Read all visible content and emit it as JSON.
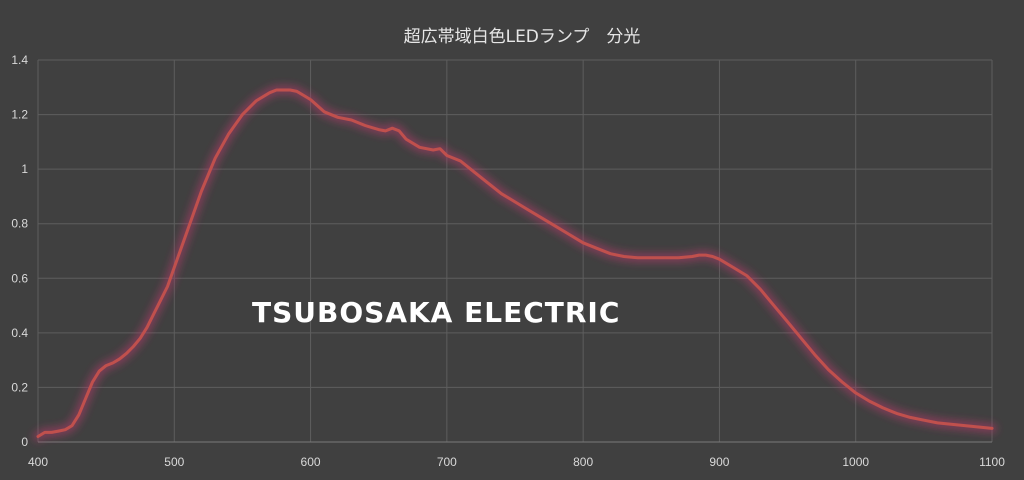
{
  "chart_data": {
    "type": "line",
    "title": "超広帯域白色LEDランプ　分光",
    "xlabel": "",
    "ylabel": "",
    "xlim": [
      400,
      1100
    ],
    "ylim": [
      0,
      1.4
    ],
    "xticks": [
      "400",
      "500",
      "600",
      "700",
      "800",
      "900",
      "1000",
      "1100"
    ],
    "yticks": [
      "0",
      "0.2",
      "0.4",
      "0.6",
      "0.8",
      "1",
      "1.2",
      "1.4"
    ],
    "grid": true,
    "legend": "none",
    "line_color": "#c0504d",
    "glow_color": "#b03a6a",
    "series": [
      {
        "x": [
          400,
          405,
          410,
          415,
          420,
          425,
          430,
          435,
          440,
          445,
          450,
          455,
          460,
          465,
          470,
          475,
          480,
          485,
          490,
          495,
          500,
          510,
          520,
          530,
          540,
          550,
          560,
          570,
          575,
          580,
          585,
          590,
          595,
          600,
          610,
          620,
          630,
          640,
          650,
          655,
          660,
          665,
          670,
          680,
          690,
          695,
          700,
          710,
          720,
          730,
          740,
          750,
          760,
          770,
          780,
          790,
          800,
          810,
          820,
          830,
          840,
          850,
          860,
          870,
          880,
          885,
          890,
          895,
          900,
          910,
          920,
          930,
          940,
          950,
          960,
          970,
          980,
          990,
          1000,
          1010,
          1020,
          1030,
          1040,
          1050,
          1060,
          1070,
          1080,
          1090,
          1100
        ],
        "values": [
          0.02,
          0.035,
          0.035,
          0.04,
          0.045,
          0.06,
          0.1,
          0.16,
          0.22,
          0.26,
          0.28,
          0.29,
          0.305,
          0.325,
          0.35,
          0.38,
          0.42,
          0.47,
          0.52,
          0.57,
          0.64,
          0.78,
          0.92,
          1.04,
          1.13,
          1.2,
          1.25,
          1.28,
          1.29,
          1.29,
          1.29,
          1.285,
          1.27,
          1.255,
          1.21,
          1.19,
          1.18,
          1.16,
          1.145,
          1.14,
          1.15,
          1.14,
          1.11,
          1.08,
          1.07,
          1.075,
          1.05,
          1.03,
          0.99,
          0.95,
          0.91,
          0.88,
          0.85,
          0.82,
          0.79,
          0.76,
          0.73,
          0.71,
          0.69,
          0.68,
          0.675,
          0.675,
          0.675,
          0.675,
          0.68,
          0.685,
          0.685,
          0.68,
          0.67,
          0.64,
          0.61,
          0.56,
          0.5,
          0.44,
          0.38,
          0.32,
          0.265,
          0.22,
          0.18,
          0.15,
          0.125,
          0.105,
          0.09,
          0.08,
          0.07,
          0.065,
          0.06,
          0.055,
          0.05
        ]
      }
    ]
  },
  "watermark": "TSUBOSAKA ELECTRIC"
}
